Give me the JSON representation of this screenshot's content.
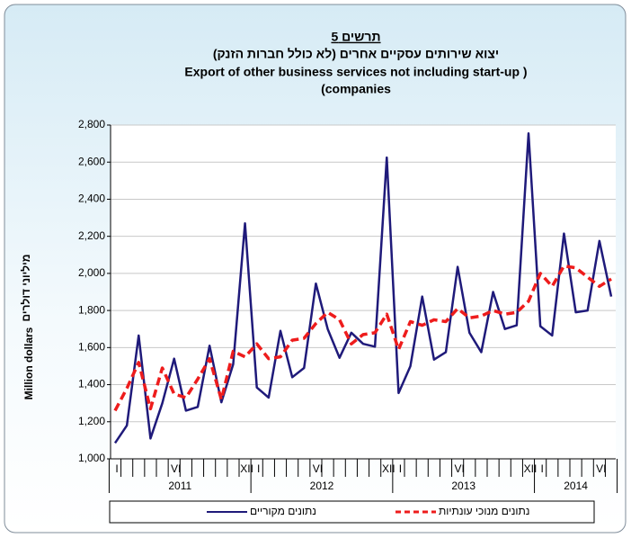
{
  "chart_data": {
    "type": "line",
    "title": "תרשים 5",
    "subtitle": [
      "יצוא שירותים עסקיים אחרים (לא כולל חברות הזנק)",
      "Export of other business services not including start-up  )",
      "(companies"
    ],
    "y_label": [
      "מיליוני דולרים",
      "Million dollars"
    ],
    "categories": [
      "I",
      null,
      null,
      null,
      null,
      "VI",
      null,
      null,
      null,
      null,
      null,
      "XII",
      "I",
      null,
      null,
      null,
      null,
      "VI",
      null,
      null,
      null,
      null,
      null,
      "XII",
      "I",
      null,
      null,
      null,
      null,
      "VI",
      null,
      null,
      null,
      null,
      null,
      "XII",
      "I",
      null,
      null,
      null,
      null,
      "VI",
      null
    ],
    "years": [
      "2011",
      "2012",
      "2013",
      "2014"
    ],
    "series": [
      {
        "name": "נתונים מקוריים",
        "color": "#1f1a7a",
        "dashed": false,
        "values": [
          1085,
          1180,
          1665,
          1110,
          1300,
          1540,
          1260,
          1280,
          1610,
          1305,
          1510,
          2270,
          1385,
          1330,
          1690,
          1440,
          1490,
          1945,
          1700,
          1545,
          1680,
          1620,
          1605,
          2625,
          1355,
          1500,
          1875,
          1535,
          1575,
          2035,
          1680,
          1575,
          1900,
          1700,
          1720,
          2755,
          1715,
          1665,
          2215,
          1790,
          1800,
          2175,
          1875
        ]
      },
      {
        "name": "נתונים מנוכי עונתיות",
        "color": "#ee1c1c",
        "dashed": true,
        "values": [
          1260,
          1380,
          1520,
          1270,
          1490,
          1350,
          1330,
          1430,
          1540,
          1320,
          1580,
          1550,
          1620,
          1540,
          1550,
          1640,
          1650,
          1730,
          1790,
          1750,
          1620,
          1670,
          1680,
          1780,
          1590,
          1740,
          1720,
          1750,
          1740,
          1810,
          1760,
          1770,
          1800,
          1780,
          1790,
          1850,
          2000,
          1930,
          2040,
          2030,
          1980,
          1930,
          1970
        ]
      }
    ],
    "ylim": [
      1000,
      2800
    ],
    "yticks": [
      {
        "value": 1000,
        "label": "1,000"
      },
      {
        "value": 1200,
        "label": "1,200"
      },
      {
        "value": 1400,
        "label": "1,400"
      },
      {
        "value": 1600,
        "label": "1,600"
      },
      {
        "value": 1800,
        "label": "1,800"
      },
      {
        "value": 2000,
        "label": "2,000"
      },
      {
        "value": 2200,
        "label": "2,200"
      },
      {
        "value": 2400,
        "label": "2,400"
      },
      {
        "value": 2600,
        "label": "2,600"
      },
      {
        "value": 2800,
        "label": "2,800"
      }
    ],
    "grid": true
  }
}
